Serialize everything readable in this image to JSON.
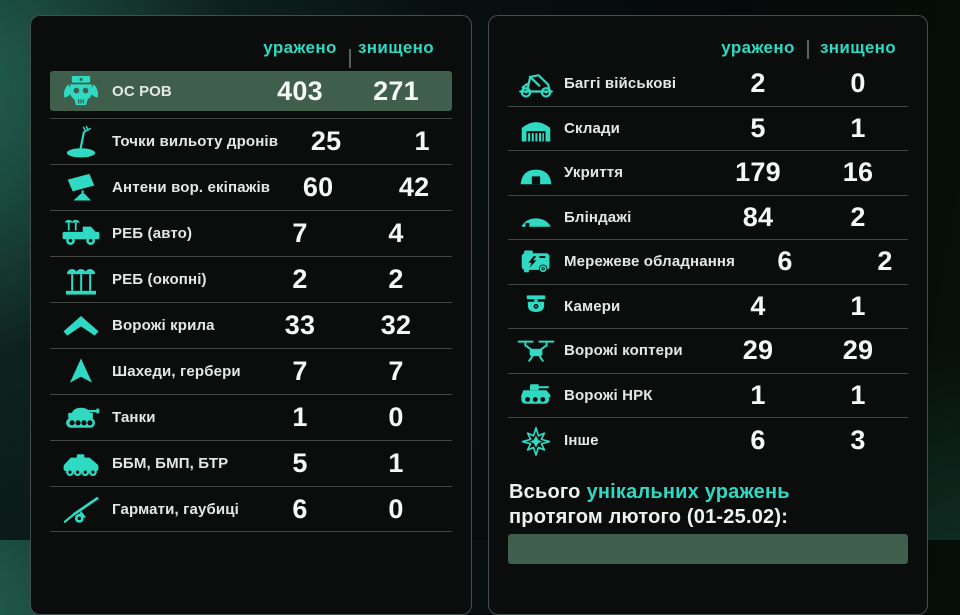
{
  "accent_color": "#2fd9c2",
  "highlight_color": "#3f5f4c",
  "left_panel": {
    "header": {
      "hit": "уражено",
      "destroyed": "знищено"
    },
    "highlight_row": {
      "icon": "orc-skull-icon",
      "label": "ОС РОВ",
      "hit": "403",
      "destroyed": "271"
    },
    "rows": [
      {
        "icon": "drone-launch-point-icon",
        "label": "Точки вильоту дронів",
        "hit": "25",
        "destroyed": "1"
      },
      {
        "icon": "antenna-panel-icon",
        "label": "Антени вор. екіпажів",
        "hit": "60",
        "destroyed": "42"
      },
      {
        "icon": "ew-truck-icon",
        "label": "РЕБ (авто)",
        "hit": "7",
        "destroyed": "4"
      },
      {
        "icon": "ew-trench-icon",
        "label": "РЕБ (окопні)",
        "hit": "2",
        "destroyed": "2"
      },
      {
        "icon": "flying-wing-icon",
        "label": "Ворожі крила",
        "hit": "33",
        "destroyed": "32"
      },
      {
        "icon": "shahed-drone-icon",
        "label": "Шахеди, гербери",
        "hit": "7",
        "destroyed": "7"
      },
      {
        "icon": "tank-icon",
        "label": "Танки",
        "hit": "1",
        "destroyed": "0"
      },
      {
        "icon": "apc-icon",
        "label": "ББМ, БМП, БТР",
        "hit": "5",
        "destroyed": "1"
      },
      {
        "icon": "howitzer-icon",
        "label": "Гармати, гаубиці",
        "hit": "6",
        "destroyed": "0"
      }
    ]
  },
  "right_panel": {
    "header": {
      "hit": "уражено",
      "destroyed": "знищено"
    },
    "rows": [
      {
        "icon": "buggy-icon",
        "label": "Баггі військові",
        "hit": "2",
        "destroyed": "0"
      },
      {
        "icon": "warehouse-icon",
        "label": "Склади",
        "hit": "5",
        "destroyed": "1"
      },
      {
        "icon": "shelter-icon",
        "label": "Укриття",
        "hit": "179",
        "destroyed": "16"
      },
      {
        "icon": "dugout-icon",
        "label": "Бліндажі",
        "hit": "84",
        "destroyed": "2"
      },
      {
        "icon": "generator-icon",
        "label": "Мережеве обладнання",
        "hit": "6",
        "destroyed": "2"
      },
      {
        "icon": "camera-icon",
        "label": "Камери",
        "hit": "4",
        "destroyed": "1"
      },
      {
        "icon": "quadcopter-icon",
        "label": "Ворожі коптери",
        "hit": "29",
        "destroyed": "29"
      },
      {
        "icon": "ugv-icon",
        "label": "Ворожі НРК",
        "hit": "1",
        "destroyed": "1"
      },
      {
        "icon": "explosion-icon",
        "label": "Інше",
        "hit": "6",
        "destroyed": "3"
      }
    ],
    "summary": {
      "line1_white": "Всього",
      "line1_accent": "унікальних уражень",
      "line2": "протягом лютого (01-25.02):"
    }
  }
}
